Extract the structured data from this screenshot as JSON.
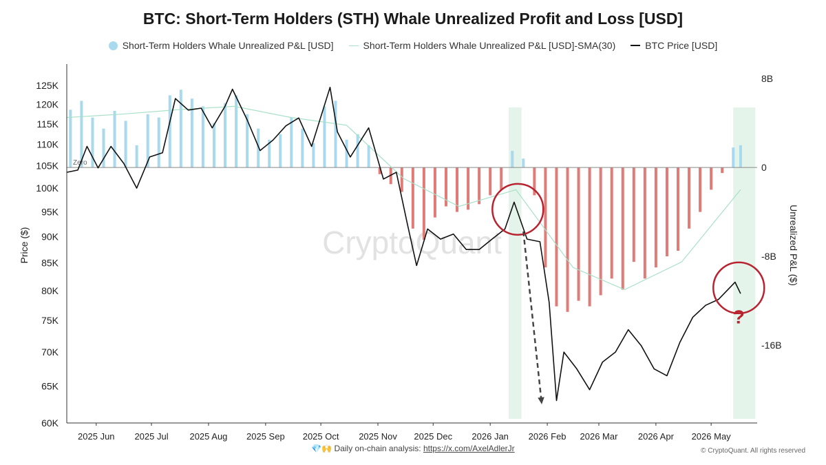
{
  "chart_data": {
    "type": "bar",
    "title": "BTC: Short-Term Holders (STH) Whale Unrealized Profit and Loss [USD]",
    "legend": [
      {
        "label": "Short-Term Holders Whale Unrealized P&L [USD]",
        "color": "#a9d9ee",
        "kind": "dot"
      },
      {
        "label": "Short-Term Holders Whale Unrealized P&L [USD]-SMA(30)",
        "color": "#a8e0c8",
        "kind": "line"
      },
      {
        "label": "BTC Price [USD]",
        "color": "#111111",
        "kind": "line"
      }
    ],
    "legend_position": "top-center",
    "ylabel_left": "Price ($)",
    "ylabel_right": "Unrealized P&L ($)",
    "yscale_left": "log",
    "ylim_left": [
      60000,
      130000
    ],
    "ylim_right": [
      -23000000000,
      9000000000
    ],
    "left_ticks": [
      "125K",
      "120K",
      "115K",
      "110K",
      "105K",
      "100K",
      "95K",
      "90K",
      "85K",
      "80K",
      "75K",
      "70K",
      "65K",
      "60K"
    ],
    "left_tick_values": [
      125000,
      120000,
      115000,
      110000,
      105000,
      100000,
      95000,
      90000,
      85000,
      80000,
      75000,
      70000,
      65000,
      60000
    ],
    "right_ticks": [
      "8B",
      "0",
      "-8B",
      "-16B"
    ],
    "right_tick_values": [
      8000000000,
      0,
      -8000000000,
      -16000000000
    ],
    "x_range": [
      "2025-05-16",
      "2026-05-26"
    ],
    "x_ticks": [
      "2025 Jun",
      "2025 Jul",
      "2025 Aug",
      "2025 Sep",
      "2025 Oct",
      "2025 Nov",
      "2025 Dec",
      "2026 Jan",
      "2026 Feb",
      "2026 Mar",
      "2026 Apr",
      "2026 May"
    ],
    "x_tick_dates": [
      "2025-06-01",
      "2025-07-01",
      "2025-08-01",
      "2025-09-01",
      "2025-10-01",
      "2025-11-01",
      "2025-12-01",
      "2026-01-01",
      "2026-02-01",
      "2026-03-01",
      "2026-04-01",
      "2026-05-01"
    ],
    "zero_label": "Zero",
    "grid": false,
    "watermark": "CryptoQuant",
    "bar_colors": {
      "positive": "#a9d9ee",
      "negative": "#e07b78"
    },
    "pnl_bars_billions": [
      {
        "date": "2025-05-18",
        "value": 5.2
      },
      {
        "date": "2025-05-24",
        "value": 6.0
      },
      {
        "date": "2025-05-30",
        "value": 4.5
      },
      {
        "date": "2025-06-05",
        "value": 3.5
      },
      {
        "date": "2025-06-11",
        "value": 5.1
      },
      {
        "date": "2025-06-17",
        "value": 4.2
      },
      {
        "date": "2025-06-23",
        "value": 2.0
      },
      {
        "date": "2025-06-29",
        "value": 4.8
      },
      {
        "date": "2025-07-05",
        "value": 4.5
      },
      {
        "date": "2025-07-11",
        "value": 6.5
      },
      {
        "date": "2025-07-17",
        "value": 7.0
      },
      {
        "date": "2025-07-23",
        "value": 6.2
      },
      {
        "date": "2025-07-29",
        "value": 5.5
      },
      {
        "date": "2025-08-04",
        "value": 4.0
      },
      {
        "date": "2025-08-10",
        "value": 5.8
      },
      {
        "date": "2025-08-16",
        "value": 6.5
      },
      {
        "date": "2025-08-22",
        "value": 4.8
      },
      {
        "date": "2025-08-28",
        "value": 3.5
      },
      {
        "date": "2025-09-03",
        "value": 2.5
      },
      {
        "date": "2025-09-09",
        "value": 3.0
      },
      {
        "date": "2025-09-15",
        "value": 4.5
      },
      {
        "date": "2025-09-21",
        "value": 3.5
      },
      {
        "date": "2025-09-27",
        "value": 2.2
      },
      {
        "date": "2025-10-03",
        "value": 5.5
      },
      {
        "date": "2025-10-09",
        "value": 6.0
      },
      {
        "date": "2025-10-15",
        "value": 2.5
      },
      {
        "date": "2025-10-21",
        "value": 3.0
      },
      {
        "date": "2025-10-27",
        "value": 2.0
      },
      {
        "date": "2025-11-02",
        "value": -0.6
      },
      {
        "date": "2025-11-08",
        "value": -1.5
      },
      {
        "date": "2025-11-14",
        "value": -2.2
      },
      {
        "date": "2025-11-20",
        "value": -5.5
      },
      {
        "date": "2025-11-26",
        "value": -6.5
      },
      {
        "date": "2025-12-02",
        "value": -4.5
      },
      {
        "date": "2025-12-08",
        "value": -3.5
      },
      {
        "date": "2025-12-14",
        "value": -4.0
      },
      {
        "date": "2025-12-20",
        "value": -3.8
      },
      {
        "date": "2025-12-26",
        "value": -3.3
      },
      {
        "date": "2026-01-01",
        "value": -2.5
      },
      {
        "date": "2026-01-07",
        "value": -2.0
      },
      {
        "date": "2026-01-13",
        "value": 1.5
      },
      {
        "date": "2026-01-19",
        "value": 0.8
      },
      {
        "date": "2026-01-25",
        "value": -2.5
      },
      {
        "date": "2026-01-31",
        "value": -9.0
      },
      {
        "date": "2026-02-06",
        "value": -12.5
      },
      {
        "date": "2026-02-12",
        "value": -13.0
      },
      {
        "date": "2026-02-18",
        "value": -12.0
      },
      {
        "date": "2026-02-24",
        "value": -12.5
      },
      {
        "date": "2026-03-02",
        "value": -11.5
      },
      {
        "date": "2026-03-08",
        "value": -10.0
      },
      {
        "date": "2026-03-14",
        "value": -11.0
      },
      {
        "date": "2026-03-20",
        "value": -8.5
      },
      {
        "date": "2026-03-26",
        "value": -10.0
      },
      {
        "date": "2026-04-01",
        "value": -9.0
      },
      {
        "date": "2026-04-07",
        "value": -8.0
      },
      {
        "date": "2026-04-13",
        "value": -7.5
      },
      {
        "date": "2026-04-19",
        "value": -5.5
      },
      {
        "date": "2026-04-25",
        "value": -4.0
      },
      {
        "date": "2026-05-01",
        "value": -2.0
      },
      {
        "date": "2026-05-07",
        "value": -0.5
      },
      {
        "date": "2026-05-13",
        "value": 1.8
      },
      {
        "date": "2026-05-17",
        "value": 2.0
      }
    ],
    "pnl_sma30_billions": [
      {
        "date": "2025-05-16",
        "value": 4.5
      },
      {
        "date": "2025-06-15",
        "value": 4.8
      },
      {
        "date": "2025-07-15",
        "value": 5.2
      },
      {
        "date": "2025-08-15",
        "value": 5.5
      },
      {
        "date": "2025-09-15",
        "value": 4.5
      },
      {
        "date": "2025-10-15",
        "value": 3.8
      },
      {
        "date": "2025-11-15",
        "value": -1.0
      },
      {
        "date": "2025-12-15",
        "value": -3.5
      },
      {
        "date": "2026-01-15",
        "value": -2.0
      },
      {
        "date": "2026-02-15",
        "value": -9.0
      },
      {
        "date": "2026-03-15",
        "value": -11.0
      },
      {
        "date": "2026-04-15",
        "value": -8.5
      },
      {
        "date": "2026-05-17",
        "value": -2.0
      }
    ],
    "btc_price": [
      {
        "date": "2025-05-16",
        "value": 103500
      },
      {
        "date": "2025-05-22",
        "value": 104000
      },
      {
        "date": "2025-05-27",
        "value": 109500
      },
      {
        "date": "2025-06-02",
        "value": 104500
      },
      {
        "date": "2025-06-09",
        "value": 109500
      },
      {
        "date": "2025-06-16",
        "value": 105500
      },
      {
        "date": "2025-06-23",
        "value": 100000
      },
      {
        "date": "2025-06-30",
        "value": 107000
      },
      {
        "date": "2025-07-07",
        "value": 108000
      },
      {
        "date": "2025-07-14",
        "value": 121500
      },
      {
        "date": "2025-07-21",
        "value": 118500
      },
      {
        "date": "2025-07-28",
        "value": 119000
      },
      {
        "date": "2025-08-03",
        "value": 114000
      },
      {
        "date": "2025-08-10",
        "value": 119500
      },
      {
        "date": "2025-08-14",
        "value": 124000
      },
      {
        "date": "2025-08-22",
        "value": 116000
      },
      {
        "date": "2025-08-29",
        "value": 108500
      },
      {
        "date": "2025-09-05",
        "value": 111000
      },
      {
        "date": "2025-09-12",
        "value": 114500
      },
      {
        "date": "2025-09-19",
        "value": 116500
      },
      {
        "date": "2025-09-26",
        "value": 109500
      },
      {
        "date": "2025-10-06",
        "value": 124500
      },
      {
        "date": "2025-10-10",
        "value": 113000
      },
      {
        "date": "2025-10-17",
        "value": 107000
      },
      {
        "date": "2025-10-27",
        "value": 114000
      },
      {
        "date": "2025-11-04",
        "value": 102000
      },
      {
        "date": "2025-11-11",
        "value": 103500
      },
      {
        "date": "2025-11-17",
        "value": 92500
      },
      {
        "date": "2025-11-22",
        "value": 84500
      },
      {
        "date": "2025-11-28",
        "value": 91500
      },
      {
        "date": "2025-12-05",
        "value": 89500
      },
      {
        "date": "2025-12-12",
        "value": 90500
      },
      {
        "date": "2025-12-19",
        "value": 87500
      },
      {
        "date": "2025-12-26",
        "value": 87500
      },
      {
        "date": "2026-01-02",
        "value": 89500
      },
      {
        "date": "2026-01-09",
        "value": 91500
      },
      {
        "date": "2026-01-14",
        "value": 97000
      },
      {
        "date": "2026-01-21",
        "value": 89500
      },
      {
        "date": "2026-01-28",
        "value": 89000
      },
      {
        "date": "2026-02-02",
        "value": 78000
      },
      {
        "date": "2026-02-06",
        "value": 63000
      },
      {
        "date": "2026-02-10",
        "value": 70000
      },
      {
        "date": "2026-02-17",
        "value": 67500
      },
      {
        "date": "2026-02-24",
        "value": 64500
      },
      {
        "date": "2026-03-03",
        "value": 68500
      },
      {
        "date": "2026-03-10",
        "value": 70000
      },
      {
        "date": "2026-03-17",
        "value": 73500
      },
      {
        "date": "2026-03-24",
        "value": 71000
      },
      {
        "date": "2026-03-31",
        "value": 67500
      },
      {
        "date": "2026-04-07",
        "value": 66500
      },
      {
        "date": "2026-04-14",
        "value": 71500
      },
      {
        "date": "2026-04-21",
        "value": 75500
      },
      {
        "date": "2026-04-28",
        "value": 77500
      },
      {
        "date": "2026-05-05",
        "value": 78500
      },
      {
        "date": "2026-05-11",
        "value": 80500
      },
      {
        "date": "2026-05-14",
        "value": 81500
      },
      {
        "date": "2026-05-17",
        "value": 79500
      }
    ],
    "highlight_bands": [
      {
        "start": "2026-01-11",
        "end": "2026-01-18",
        "color": "#e4f4ea"
      },
      {
        "start": "2026-05-13",
        "end": "2026-05-25",
        "color": "#e4f4ea"
      }
    ],
    "annotations": [
      {
        "type": "circle",
        "date": "2026-01-16",
        "price": 95500,
        "color": "#b8232f"
      },
      {
        "type": "circle",
        "date": "2026-05-16",
        "price": 80500,
        "color": "#b8232f"
      },
      {
        "type": "arrow",
        "from_date": "2026-01-19",
        "from_price": 91000,
        "to_date": "2026-01-29",
        "to_price": 62500,
        "style": "dashed"
      },
      {
        "type": "text",
        "text": "?",
        "date": "2026-05-16",
        "price": 74500,
        "color": "#b8232f"
      }
    ]
  },
  "footer": {
    "icons": "💎🙌",
    "text": "Daily on-chain analysis: ",
    "link_text": "https://x.com/AxelAdlerJr",
    "copyright": "© CryptoQuant. All rights reserved"
  }
}
